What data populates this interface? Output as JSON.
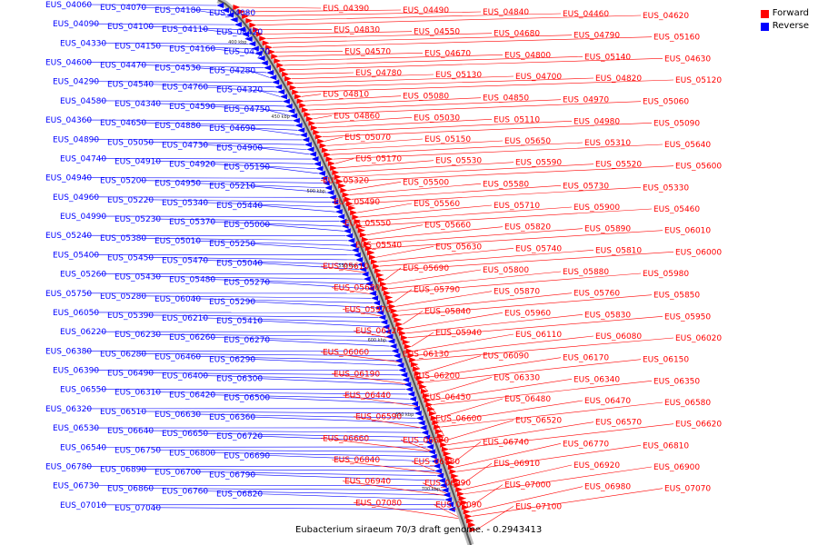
{
  "legend": {
    "forward_label": "Forward",
    "reverse_label": "Reverse",
    "forward_color": "#ff0000",
    "reverse_color": "#0000ff"
  },
  "caption": "Eubacterium siraeum 70/3 draft genome. - 0.2943413",
  "scale_labels": [
    "400 kbp",
    "450 kbp",
    "500 kbp",
    "550 kbp",
    "600 kbp",
    "650 kbp",
    "700 kbp"
  ],
  "reverse_genes": [
    "EUS_04060",
    "EUS_04070",
    "EUS_04180",
    "EUS_04080",
    "EUS_04090",
    "EUS_04100",
    "EUS_04110",
    "EUS_04420",
    "EUS_04330",
    "EUS_04150",
    "EUS_04160",
    "EUS_04170",
    "EUS_04600",
    "EUS_04470",
    "EUS_04530",
    "EUS_04280",
    "EUS_04290",
    "EUS_04540",
    "EUS_04760",
    "EUS_04320",
    "EUS_04580",
    "EUS_04340",
    "EUS_04590",
    "EUS_04750",
    "EUS_04360",
    "EUS_04650",
    "EUS_04880",
    "EUS_04690",
    "EUS_04890",
    "EUS_05050",
    "EUS_04730",
    "EUS_04900",
    "EUS_04740",
    "EUS_04910",
    "EUS_04920",
    "EUS_05190",
    "EUS_04940",
    "EUS_05200",
    "EUS_04950",
    "EUS_05210",
    "EUS_04960",
    "EUS_05220",
    "EUS_05340",
    "EUS_05440",
    "EUS_04990",
    "EUS_05230",
    "EUS_05370",
    "EUS_05000",
    "EUS_05240",
    "EUS_05380",
    "EUS_05010",
    "EUS_05250",
    "EUS_05400",
    "EUS_05450",
    "EUS_05470",
    "EUS_05040",
    "EUS_05260",
    "EUS_05430",
    "EUS_05480",
    "EUS_05270",
    "EUS_05750",
    "EUS_05280",
    "EUS_06040",
    "EUS_05290",
    "EUS_06050",
    "EUS_05390",
    "EUS_06210",
    "EUS_05410",
    "EUS_06220",
    "EUS_06230",
    "EUS_06260",
    "EUS_06270",
    "EUS_06380",
    "EUS_06280",
    "EUS_06460",
    "EUS_06290",
    "EUS_06390",
    "EUS_06490",
    "EUS_06400",
    "EUS_06300",
    "EUS_06550",
    "EUS_06310",
    "EUS_06420",
    "EUS_06500",
    "EUS_06320",
    "EUS_06510",
    "EUS_06630",
    "EUS_06360",
    "EUS_06530",
    "EUS_06640",
    "EUS_06650",
    "EUS_06720",
    "EUS_06540",
    "EUS_06750",
    "EUS_06800",
    "EUS_06690",
    "EUS_06780",
    "EUS_06890",
    "EUS_06700",
    "EUS_06790",
    "EUS_06730",
    "EUS_06860",
    "EUS_06760",
    "EUS_06820",
    "EUS_07010",
    "EUS_07040"
  ],
  "forward_genes": [
    "EUS_04390",
    "EUS_04490",
    "EUS_04840",
    "EUS_04460",
    "EUS_04620",
    "EUS_04830",
    "EUS_04550",
    "EUS_04680",
    "EUS_04790",
    "EUS_05160",
    "EUS_04570",
    "EUS_04670",
    "EUS_04800",
    "EUS_05140",
    "EUS_04630",
    "EUS_04780",
    "EUS_05130",
    "EUS_04700",
    "EUS_04820",
    "EUS_05120",
    "EUS_04810",
    "EUS_05080",
    "EUS_04850",
    "EUS_04970",
    "EUS_05060",
    "EUS_04860",
    "EUS_05030",
    "EUS_05110",
    "EUS_04980",
    "EUS_05090",
    "EUS_05070",
    "EUS_05150",
    "EUS_05650",
    "EUS_05310",
    "EUS_05640",
    "EUS_05170",
    "EUS_05530",
    "EUS_05590",
    "EUS_05520",
    "EUS_05600",
    "EUS_05320",
    "EUS_05500",
    "EUS_05580",
    "EUS_05730",
    "EUS_05330",
    "EUS_05490",
    "EUS_05560",
    "EUS_05710",
    "EUS_05900",
    "EUS_05460",
    "EUS_05550",
    "EUS_05660",
    "EUS_05820",
    "EUS_05890",
    "EUS_06010",
    "EUS_05540",
    "EUS_05630",
    "EUS_05740",
    "EUS_05810",
    "EUS_06000",
    "EUS_05610",
    "EUS_05690",
    "EUS_05800",
    "EUS_05880",
    "EUS_05980",
    "EUS_05680",
    "EUS_05790",
    "EUS_05870",
    "EUS_05760",
    "EUS_05850",
    "EUS_05970",
    "EUS_05840",
    "EUS_05960",
    "EUS_05830",
    "EUS_05950",
    "EUS_06120",
    "EUS_05940",
    "EUS_06110",
    "EUS_06080",
    "EUS_06020",
    "EUS_06060",
    "EUS_06130",
    "EUS_06090",
    "EUS_06170",
    "EUS_06150",
    "EUS_06190",
    "EUS_06200",
    "EUS_06330",
    "EUS_06340",
    "EUS_06350",
    "EUS_06440",
    "EUS_06450",
    "EUS_06480",
    "EUS_06470",
    "EUS_06580",
    "EUS_06590",
    "EUS_06600",
    "EUS_06520",
    "EUS_06570",
    "EUS_06620",
    "EUS_06660",
    "EUS_06670",
    "EUS_06740",
    "EUS_06770",
    "EUS_06810",
    "EUS_06840",
    "EUS_06880",
    "EUS_06910",
    "EUS_06920",
    "EUS_06900",
    "EUS_06940",
    "EUS_06990",
    "EUS_07000",
    "EUS_06980",
    "EUS_07070",
    "EUS_07080",
    "EUS_07090",
    "EUS_07100"
  ]
}
